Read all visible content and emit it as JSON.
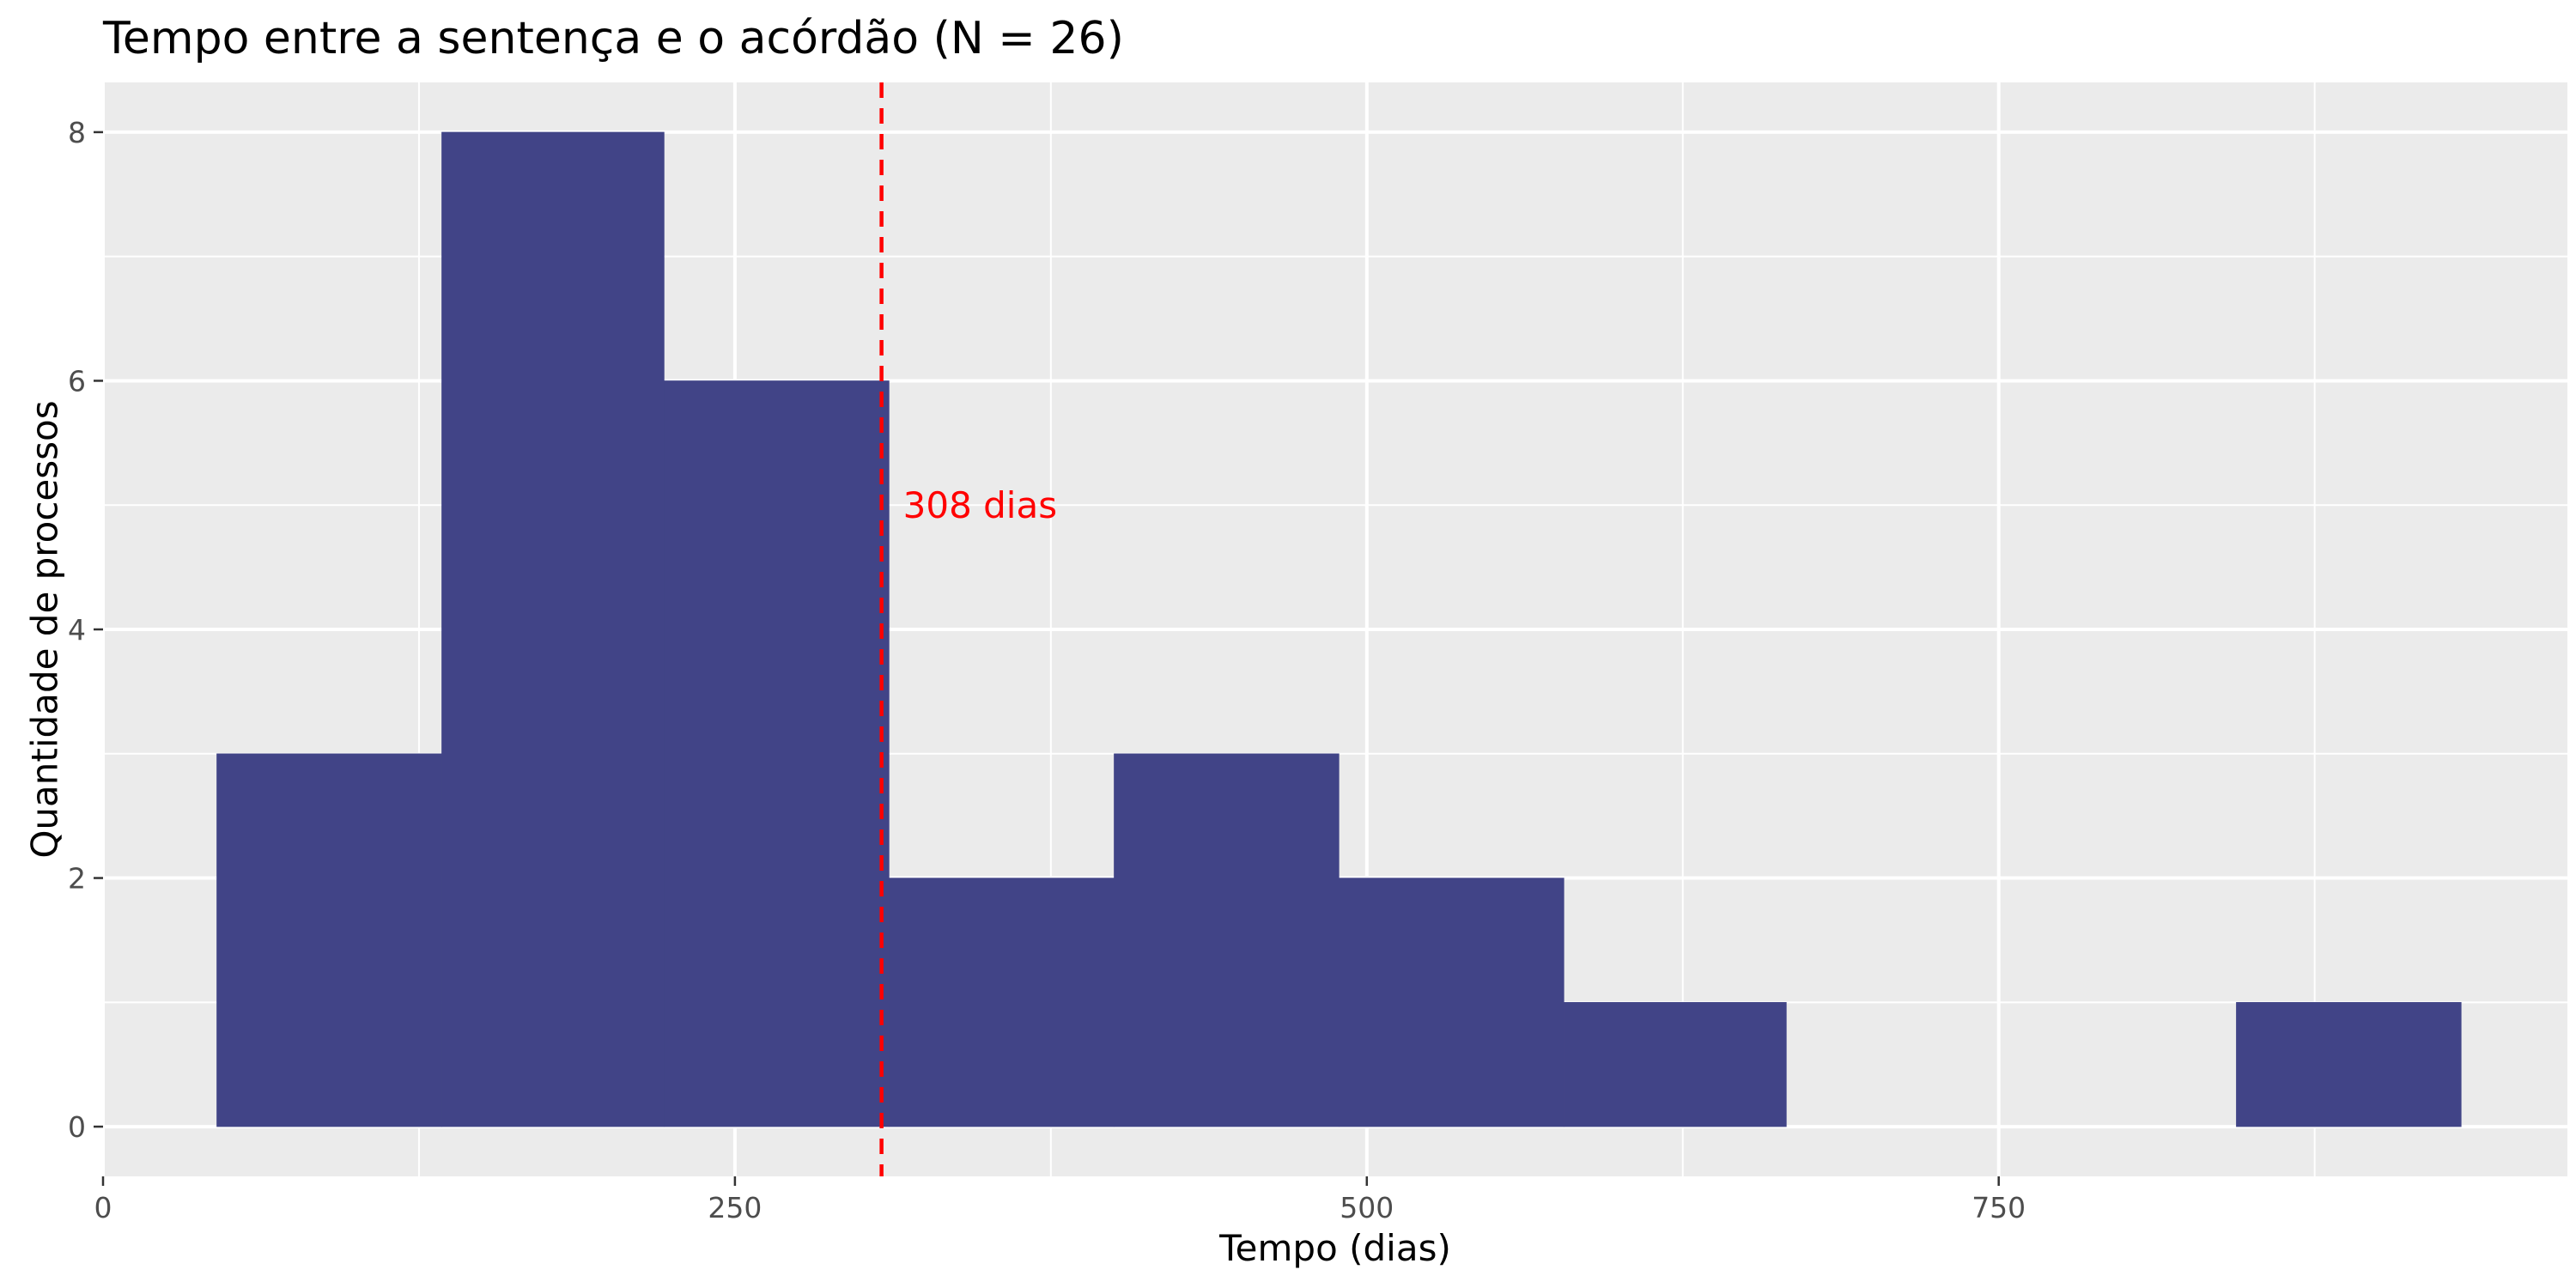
{
  "chart_data": {
    "type": "bar",
    "title": "Tempo entre a sentença e o acórdão (N = 26)",
    "xlabel": "Tempo (dias)",
    "ylabel": "Quantidade de processos",
    "xlim": [
      0,
      975
    ],
    "ylim": [
      -0.4,
      8.4
    ],
    "x_ticks": [
      0,
      250,
      500,
      750
    ],
    "x_tick_labels": [
      "0",
      "250",
      "500",
      "750"
    ],
    "y_ticks": [
      0,
      2,
      4,
      6,
      8
    ],
    "y_tick_labels": [
      "0",
      "2",
      "4",
      "6",
      "8"
    ],
    "bins": [
      {
        "x0": 45,
        "x1": 134,
        "count": 3
      },
      {
        "x0": 134,
        "x1": 222,
        "count": 8
      },
      {
        "x0": 222,
        "x1": 311,
        "count": 6
      },
      {
        "x0": 311,
        "x1": 400,
        "count": 2
      },
      {
        "x0": 400,
        "x1": 489,
        "count": 3
      },
      {
        "x0": 489,
        "x1": 578,
        "count": 2
      },
      {
        "x0": 578,
        "x1": 666,
        "count": 1
      },
      {
        "x0": 666,
        "x1": 755,
        "count": 0
      },
      {
        "x0": 755,
        "x1": 844,
        "count": 0
      },
      {
        "x0": 844,
        "x1": 933,
        "count": 1
      }
    ],
    "reference_line": {
      "x": 308,
      "label": "308 dias",
      "label_y": 5
    },
    "grid": true,
    "colors": {
      "bar": "#414487",
      "panel_background": "#ebebeb",
      "grid": "#ffffff",
      "reference_line": "#ff0000"
    }
  }
}
